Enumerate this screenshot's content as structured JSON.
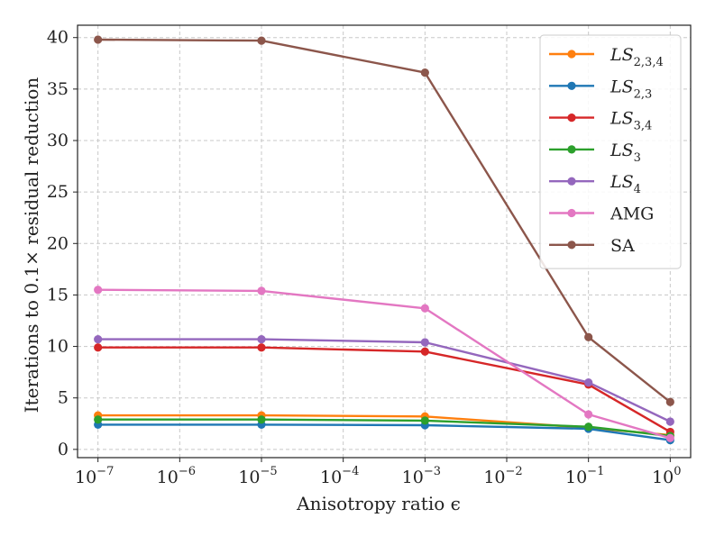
{
  "chart_data": {
    "type": "line",
    "title": "",
    "xlabel": "Anisotropy ratio ϵ",
    "ylabel": "Iterations to 0.1× residual reduction",
    "xscale": "log",
    "x": [
      1e-07,
      1e-05,
      0.001,
      0.1,
      1
    ],
    "xlim_exp": [
      -7.25,
      0.25
    ],
    "ylim": [
      -0.8,
      41.2
    ],
    "xticks": [
      {
        "value": 1e-07,
        "base": "10",
        "exp": "−7"
      },
      {
        "value": 1e-06,
        "base": "10",
        "exp": "−6"
      },
      {
        "value": 1e-05,
        "base": "10",
        "exp": "−5"
      },
      {
        "value": 0.0001,
        "base": "10",
        "exp": "−4"
      },
      {
        "value": 0.001,
        "base": "10",
        "exp": "−3"
      },
      {
        "value": 0.01,
        "base": "10",
        "exp": "−2"
      },
      {
        "value": 0.1,
        "base": "10",
        "exp": "−1"
      },
      {
        "value": 1,
        "base": "10",
        "exp": "0"
      }
    ],
    "yticks": [
      {
        "value": 0,
        "label": "0"
      },
      {
        "value": 5,
        "label": "5"
      },
      {
        "value": 10,
        "label": "10"
      },
      {
        "value": 15,
        "label": "15"
      },
      {
        "value": 20,
        "label": "20"
      },
      {
        "value": 25,
        "label": "25"
      },
      {
        "value": 30,
        "label": "30"
      },
      {
        "value": 35,
        "label": "35"
      },
      {
        "value": 40,
        "label": "40"
      }
    ],
    "grid": true,
    "legend_position": "top-right",
    "series": [
      {
        "name": "LS",
        "sub": "2,3,4",
        "italic": true,
        "color": "#ff7f0e",
        "values": [
          3.3,
          3.3,
          3.2,
          2.1,
          1.4
        ]
      },
      {
        "name": "LS",
        "sub": "2,3",
        "italic": true,
        "color": "#1f77b4",
        "values": [
          2.4,
          2.4,
          2.35,
          2.0,
          0.9
        ]
      },
      {
        "name": "LS",
        "sub": "3,4",
        "italic": true,
        "color": "#d62728",
        "values": [
          9.9,
          9.9,
          9.5,
          6.3,
          1.7
        ]
      },
      {
        "name": "LS",
        "sub": "3",
        "italic": true,
        "color": "#2ca02c",
        "values": [
          2.9,
          2.9,
          2.8,
          2.2,
          1.3
        ]
      },
      {
        "name": "LS",
        "sub": "4",
        "italic": true,
        "color": "#9467bd",
        "values": [
          10.7,
          10.7,
          10.4,
          6.5,
          2.7
        ]
      },
      {
        "name": "AMG",
        "sub": "",
        "italic": false,
        "color": "#e377c2",
        "values": [
          15.5,
          15.4,
          13.7,
          3.4,
          1.1
        ]
      },
      {
        "name": "SA",
        "sub": "",
        "italic": false,
        "color": "#8c564b",
        "values": [
          39.8,
          39.7,
          36.6,
          10.9,
          4.6
        ]
      }
    ]
  }
}
